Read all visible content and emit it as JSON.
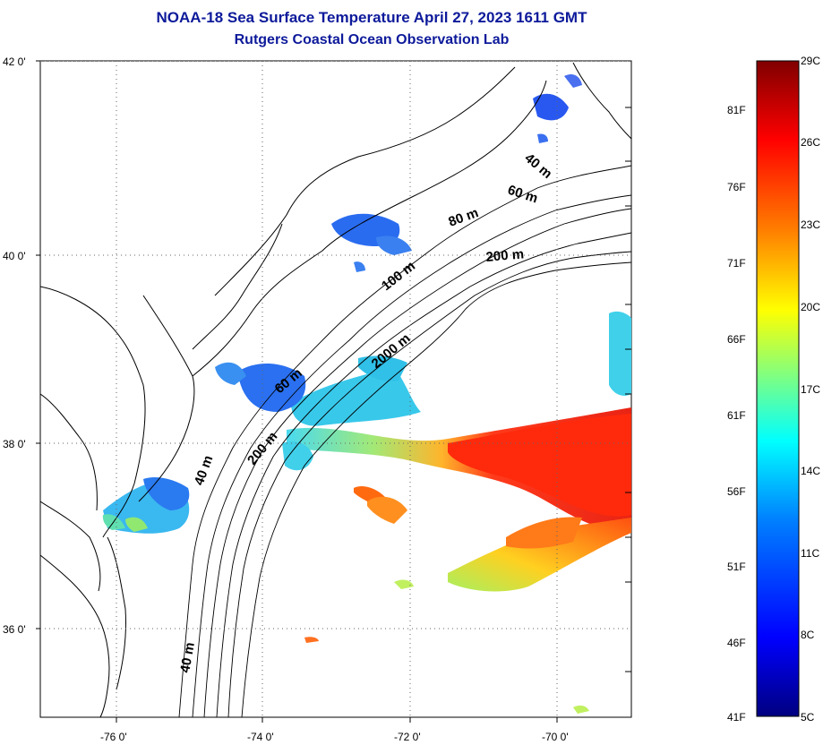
{
  "header": {
    "title": "NOAA-18 Sea Surface Temperature April 27, 2023 1611 GMT",
    "subtitle": "Rutgers Coastal Ocean Observation Lab"
  },
  "axes": {
    "lat_labels": [
      "42 0'",
      "40 0'",
      "38 0'",
      "36 0'"
    ],
    "lon_labels": [
      "-76 0'",
      "-74 0'",
      "-72 0'",
      "-70 0'"
    ]
  },
  "contour_labels": [
    "40 m",
    "60 m",
    "80 m",
    "200 m",
    "100 m",
    "2000 m",
    "60 m",
    "200 m",
    "40 m",
    "40 m"
  ],
  "colorbar": {
    "f_labels": [
      "81F",
      "76F",
      "71F",
      "66F",
      "61F",
      "56F",
      "51F",
      "46F",
      "41F"
    ],
    "c_labels": [
      "29C",
      "26C",
      "23C",
      "20C",
      "17C",
      "14C",
      "11C",
      "8C",
      "5C"
    ],
    "colors": [
      "#800000",
      "#ff0000",
      "#ff8000",
      "#ffff00",
      "#80ff80",
      "#00ffff",
      "#0080ff",
      "#0000ff",
      "#000080"
    ]
  },
  "colors": {
    "title": "#0d1a9a",
    "land_outline": "#000000",
    "sst_cold": "#2a5cf0",
    "sst_cool": "#30c8e8",
    "sst_mid": "#7de0a0",
    "sst_warm": "#e83a10"
  }
}
